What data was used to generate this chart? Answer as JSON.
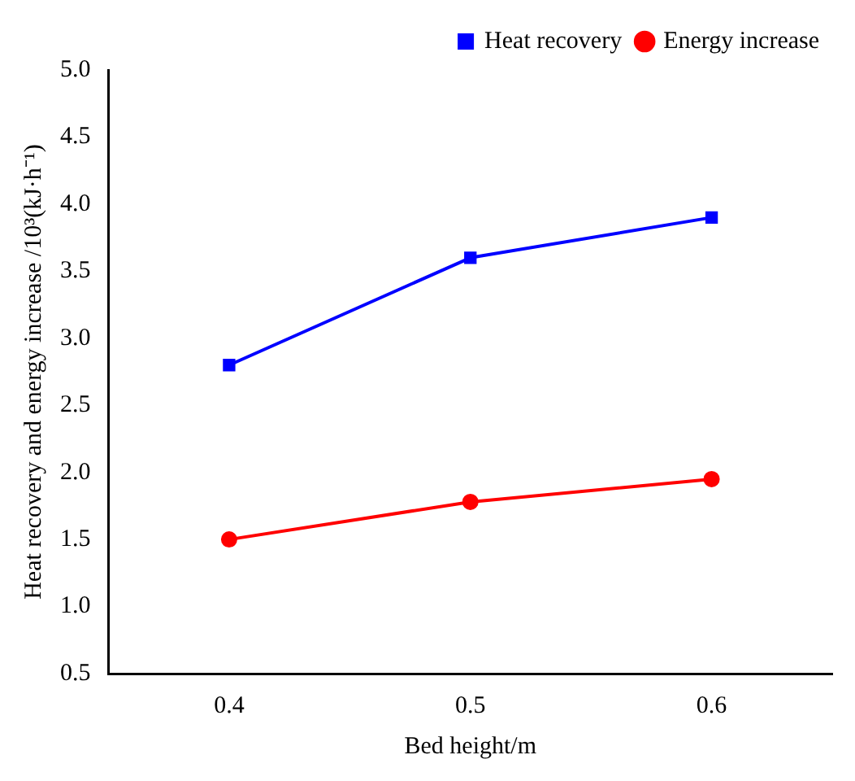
{
  "chart_data": {
    "type": "line",
    "xlabel": "Bed height/m",
    "ylabel": "Heat recovery and energy increase /10³(kJ·h⁻¹)",
    "x": [
      0.4,
      0.5,
      0.6
    ],
    "series": [
      {
        "name": "Heat recovery",
        "color": "#0000ff",
        "values": [
          2.8,
          3.6,
          3.9
        ],
        "marker": "square"
      },
      {
        "name": "Energy increase",
        "color": "#ff0000",
        "values": [
          1.5,
          1.78,
          1.95
        ],
        "marker": "circle"
      }
    ],
    "xlim": [
      0.35,
      0.65
    ],
    "xticks": [
      0.4,
      0.5,
      0.6
    ],
    "ylim": [
      0.5,
      5.0
    ],
    "yticks": [
      0.5,
      {
        "value": 1,
        "label": "1.0"
      },
      1.5,
      {
        "value": 2,
        "label": "2.0"
      },
      2.5,
      {
        "value": 3,
        "label": "3.0"
      },
      3.5,
      {
        "value": 4,
        "label": "4.0"
      },
      4.5,
      {
        "value": 5,
        "label": "5.0"
      }
    ],
    "legend": "top right",
    "grid": false,
    "line_style": "solid"
  }
}
